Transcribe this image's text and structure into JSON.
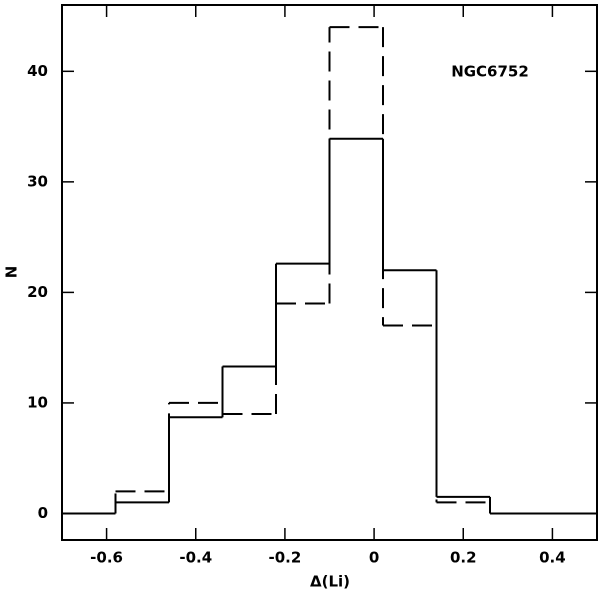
{
  "chart_data": {
    "type": "histogram",
    "xlabel": "Δ(Li)",
    "ylabel": "N",
    "annotation": "NGC6752",
    "bins": [
      -0.7,
      -0.58,
      -0.46,
      -0.34,
      -0.22,
      -0.1,
      0.02,
      0.14,
      0.26,
      0.38,
      0.5
    ],
    "series": [
      {
        "color": "#000000",
        "dash": "solid",
        "values": [
          0,
          1,
          8.7,
          13.3,
          22.6,
          33.9,
          22,
          1.5,
          0,
          0
        ]
      },
      {
        "color": "#000000",
        "dash": "dashed",
        "values": [
          0,
          2,
          10,
          9,
          19,
          44,
          17,
          1,
          0,
          0
        ]
      }
    ],
    "xlim": [
      -0.7,
      0.5
    ],
    "ylim": [
      -2.4,
      46
    ],
    "xticks": [
      -0.6,
      -0.4,
      -0.2,
      0,
      0.2,
      0.4
    ],
    "yticks": [
      0,
      10,
      20,
      30,
      40
    ]
  }
}
